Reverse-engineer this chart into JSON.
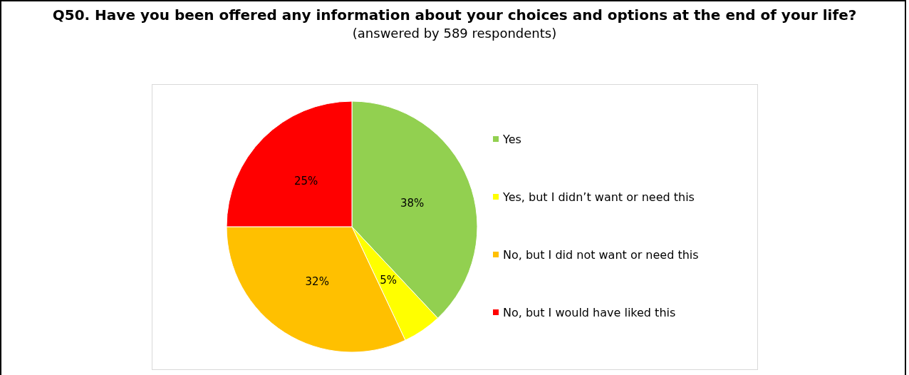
{
  "chart_data": {
    "type": "pie",
    "title": "Q50. Have you been offered any information about your choices and options at the end of your life?",
    "subtitle": "(answered by 589 respondents)",
    "categories": [
      "Yes",
      "Yes, but I didn’t want or need this",
      "No, but I did not want or need this",
      "No, but I would have liked this"
    ],
    "values": [
      38,
      5,
      32,
      25
    ],
    "colors": [
      "#92d050",
      "#ffff00",
      "#ffc000",
      "#ff0000"
    ],
    "value_labels": [
      "38%",
      "5%",
      "32%",
      "25%"
    ],
    "legend": "right"
  }
}
